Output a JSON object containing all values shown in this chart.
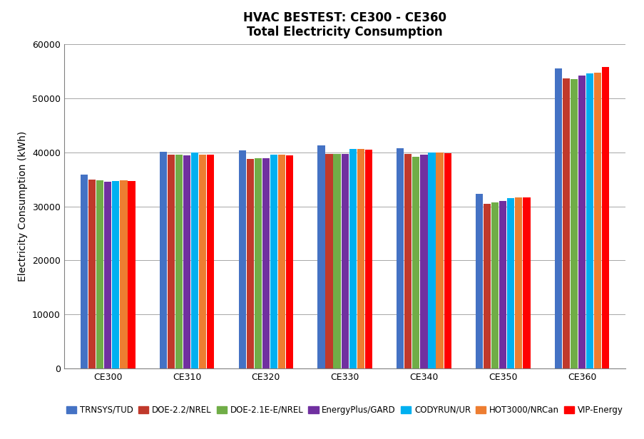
{
  "title_line1": "HVAC BESTEST: CE300 - CE360",
  "title_line2": "Total Electricity Consumption",
  "ylabel": "Electricity Consumption (kWh)",
  "categories": [
    "CE300",
    "CE310",
    "CE320",
    "CE330",
    "CE340",
    "CE350",
    "CE360"
  ],
  "series": [
    {
      "label": "TRNSYS/TUD",
      "color": "#4F6228",
      "excel_color": "#4472C4",
      "values": [
        35800,
        40100,
        40400,
        41200,
        40700,
        32300,
        55500
      ]
    },
    {
      "label": "DOE-2.2/NREL",
      "color": "#C0392B",
      "excel_color": "#FF0000",
      "values": [
        35000,
        39600,
        38700,
        39700,
        39700,
        30500,
        53600
      ]
    },
    {
      "label": "DOE-2.1E-E/NREL",
      "color": "#70AD47",
      "excel_color": "#70AD47",
      "values": [
        34800,
        39500,
        38900,
        39700,
        39200,
        30700,
        53500
      ]
    },
    {
      "label": "EnergyPlus/GARD",
      "color": "#7030A0",
      "excel_color": "#7030A0",
      "values": [
        34600,
        39400,
        38900,
        39700,
        39500,
        31000,
        54100
      ]
    },
    {
      "label": "CODYRUN/UR",
      "color": "#00B0F0",
      "excel_color": "#00B0F0",
      "values": [
        34700,
        39900,
        39500,
        40600,
        39900,
        31500,
        54600
      ]
    },
    {
      "label": "HOT3000/NRCan",
      "color": "#ED7D31",
      "excel_color": "#ED7D31",
      "values": [
        34800,
        39600,
        39500,
        40600,
        39900,
        31600,
        54700
      ]
    },
    {
      "label": "VIP-Energy",
      "color": "#FF0000",
      "excel_color": "#FF0000",
      "values": [
        34700,
        39600,
        39400,
        40500,
        39800,
        31600,
        55700
      ]
    }
  ],
  "bar_colors": [
    "#4472C4",
    "#C0392B",
    "#70AD47",
    "#7030A0",
    "#00B0F0",
    "#ED7D31",
    "#FF0000"
  ],
  "ylim": [
    0,
    60000
  ],
  "yticks": [
    0,
    10000,
    20000,
    30000,
    40000,
    50000,
    60000
  ],
  "background_color": "#FFFFFF",
  "plot_bg_color": "#FFFFFF",
  "grid_color": "#A6A6A6",
  "bar_width": 0.1,
  "title_fontsize": 12,
  "axis_label_fontsize": 10,
  "tick_fontsize": 9,
  "legend_fontsize": 8.5
}
